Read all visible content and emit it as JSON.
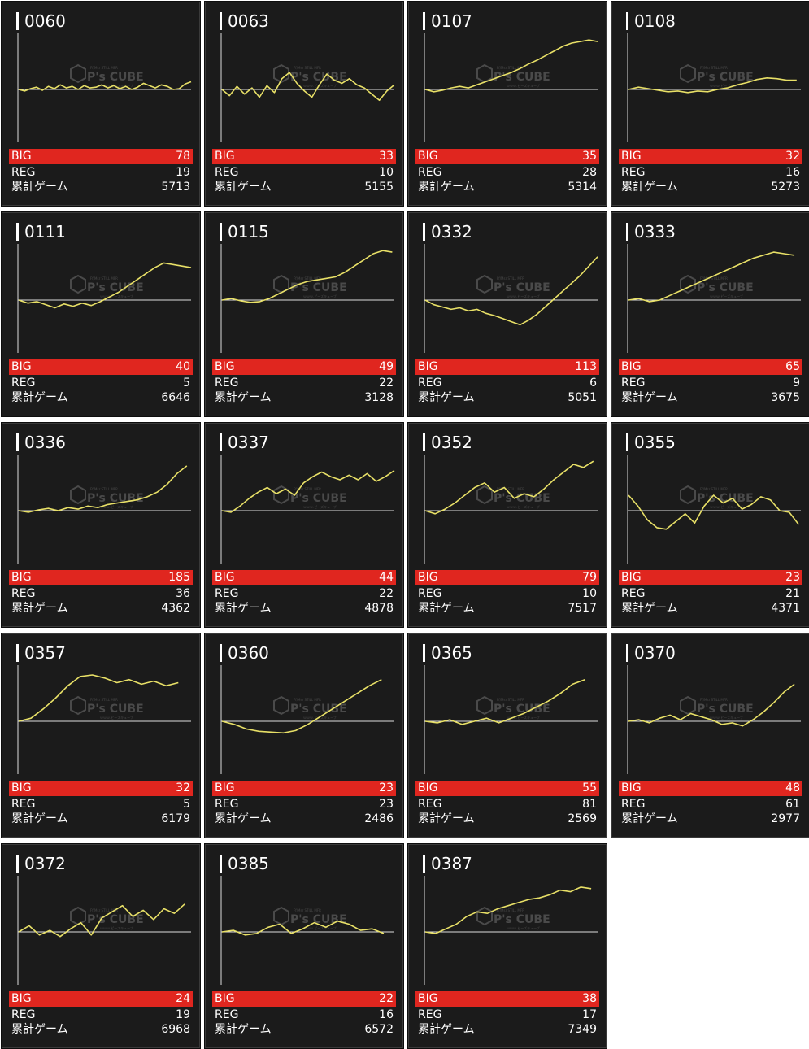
{
  "labels": {
    "big": "BIG",
    "reg": "REG",
    "games": "累計ゲーム",
    "watermark_brand": "P's CUBE",
    "watermark_top": "Ff/Msr STILL MFR",
    "watermark_bottom": "ｗｗｗ.ピーズキューブ"
  },
  "colors": {
    "card_bg": "#1b1b1b",
    "big_bar": "#e0261f",
    "graph_line": "#e8e067",
    "axis_line": "#dddddd",
    "watermark": "#4a4a4a"
  },
  "machines": [
    {
      "number": "0060",
      "big": "78",
      "reg": "19",
      "games": "5713",
      "trend": [
        0,
        -2,
        1,
        3,
        -1,
        4,
        1,
        6,
        2,
        4,
        0,
        5,
        2,
        3,
        6,
        2,
        5,
        1,
        4,
        0,
        3,
        8,
        5,
        2,
        6,
        4,
        0,
        1,
        7,
        10
      ]
    },
    {
      "number": "0063",
      "big": "33",
      "reg": "10",
      "games": "5155",
      "trend": [
        0,
        -8,
        4,
        -6,
        2,
        -10,
        5,
        -4,
        14,
        22,
        8,
        -2,
        -10,
        6,
        20,
        12,
        8,
        14,
        6,
        2,
        -6,
        -14,
        -2,
        6
      ]
    },
    {
      "number": "0107",
      "big": "35",
      "reg": "28",
      "games": "5314",
      "trend": [
        0,
        -3,
        -1,
        2,
        4,
        2,
        6,
        10,
        14,
        18,
        22,
        27,
        33,
        38,
        44,
        50,
        56,
        60,
        62,
        64,
        62
      ]
    },
    {
      "number": "0108",
      "big": "32",
      "reg": "16",
      "games": "5273",
      "trend": [
        0,
        3,
        1,
        -1,
        -3,
        -2,
        -4,
        -2,
        -3,
        0,
        2,
        6,
        9,
        13,
        15,
        14,
        12,
        12
      ]
    },
    {
      "number": "0111",
      "big": "40",
      "reg": "5",
      "games": "6646",
      "trend": [
        0,
        -4,
        -2,
        -6,
        -10,
        -5,
        -8,
        -4,
        -7,
        -2,
        4,
        10,
        18,
        26,
        34,
        42,
        48,
        46,
        44,
        42
      ]
    },
    {
      "number": "0115",
      "big": "49",
      "reg": "22",
      "games": "3128",
      "trend": [
        0,
        2,
        -1,
        -3,
        -2,
        2,
        8,
        14,
        20,
        24,
        26,
        28,
        30,
        36,
        44,
        52,
        60,
        64,
        62
      ]
    },
    {
      "number": "0332",
      "big": "113",
      "reg": "6",
      "games": "5051",
      "trend": [
        0,
        -6,
        -9,
        -12,
        -10,
        -14,
        -12,
        -17,
        -20,
        -24,
        -28,
        -32,
        -26,
        -18,
        -8,
        2,
        12,
        22,
        32,
        44,
        56
      ]
    },
    {
      "number": "0333",
      "big": "65",
      "reg": "9",
      "games": "3675",
      "trend": [
        0,
        2,
        -2,
        0,
        6,
        12,
        18,
        24,
        30,
        36,
        42,
        48,
        54,
        58,
        62,
        60,
        58
      ]
    },
    {
      "number": "0336",
      "big": "185",
      "reg": "36",
      "games": "4362",
      "trend": [
        0,
        -2,
        1,
        3,
        0,
        4,
        2,
        6,
        4,
        8,
        10,
        12,
        14,
        18,
        24,
        34,
        48,
        58
      ]
    },
    {
      "number": "0337",
      "big": "44",
      "reg": "22",
      "games": "4878",
      "trend": [
        0,
        -2,
        6,
        16,
        24,
        30,
        22,
        28,
        20,
        36,
        44,
        50,
        44,
        40,
        46,
        40,
        48,
        38,
        44,
        52
      ]
    },
    {
      "number": "0352",
      "big": "79",
      "reg": "10",
      "games": "7517",
      "trend": [
        0,
        -4,
        2,
        10,
        20,
        30,
        36,
        24,
        30,
        16,
        22,
        18,
        28,
        40,
        50,
        60,
        56,
        64
      ]
    },
    {
      "number": "0355",
      "big": "23",
      "reg": "21",
      "games": "4371",
      "trend": [
        20,
        6,
        -12,
        -22,
        -24,
        -14,
        -4,
        -16,
        6,
        20,
        10,
        16,
        2,
        8,
        18,
        14,
        0,
        -2,
        -18
      ]
    },
    {
      "number": "0357",
      "big": "32",
      "reg": "5",
      "games": "6179",
      "trend": [
        0,
        4,
        16,
        30,
        46,
        58,
        60,
        56,
        50,
        54,
        48,
        52,
        46,
        50
      ]
    },
    {
      "number": "0360",
      "big": "23",
      "reg": "23",
      "games": "2486",
      "trend": [
        0,
        -4,
        -10,
        -13,
        -14,
        -15,
        -12,
        -4,
        6,
        16,
        26,
        36,
        46,
        54
      ]
    },
    {
      "number": "0365",
      "big": "55",
      "reg": "81",
      "games": "2569",
      "trend": [
        0,
        -2,
        2,
        -4,
        0,
        4,
        -2,
        4,
        10,
        18,
        26,
        36,
        48,
        54
      ]
    },
    {
      "number": "0370",
      "big": "48",
      "reg": "61",
      "games": "2977",
      "trend": [
        0,
        2,
        -2,
        4,
        8,
        2,
        10,
        6,
        2,
        -4,
        -2,
        -6,
        2,
        12,
        24,
        38,
        48
      ]
    },
    {
      "number": "0372",
      "big": "24",
      "reg": "19",
      "games": "6968",
      "trend": [
        0,
        8,
        -4,
        2,
        -6,
        4,
        12,
        -4,
        18,
        26,
        34,
        20,
        28,
        16,
        30,
        24,
        36
      ]
    },
    {
      "number": "0385",
      "big": "22",
      "reg": "16",
      "games": "6572",
      "trend": [
        0,
        2,
        -4,
        -2,
        6,
        10,
        -2,
        4,
        12,
        6,
        14,
        10,
        2,
        4,
        -2
      ]
    },
    {
      "number": "0387",
      "big": "38",
      "reg": "17",
      "games": "7349",
      "trend": [
        0,
        -2,
        4,
        10,
        20,
        26,
        24,
        30,
        34,
        38,
        42,
        44,
        48,
        54,
        52,
        58,
        56
      ]
    }
  ]
}
